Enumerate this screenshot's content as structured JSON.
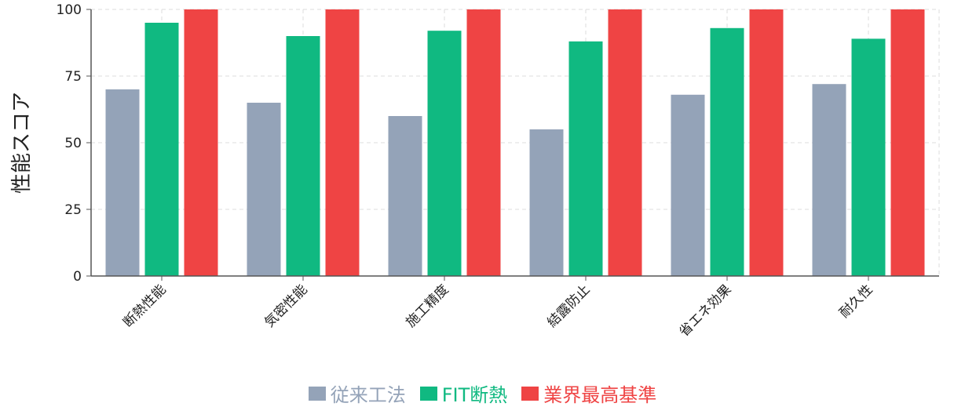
{
  "chart_data": {
    "type": "bar",
    "ylabel": "性能スコア",
    "ylim": [
      0,
      100
    ],
    "yticks": [
      0,
      25,
      50,
      75,
      100
    ],
    "grid": true,
    "legend_position": "bottom",
    "categories": [
      "断熱性能",
      "気密性能",
      "施工精度",
      "結露防止",
      "省エネ効果",
      "耐久性"
    ],
    "series": [
      {
        "name": "従来工法",
        "color": "#94a3b8",
        "values": [
          70,
          65,
          60,
          55,
          68,
          72
        ]
      },
      {
        "name": "FIT断熱",
        "color": "#10b981",
        "values": [
          95,
          90,
          92,
          88,
          93,
          89
        ]
      },
      {
        "name": "業界最高基準",
        "color": "#ef4444",
        "values": [
          100,
          100,
          100,
          100,
          100,
          100
        ]
      }
    ]
  }
}
